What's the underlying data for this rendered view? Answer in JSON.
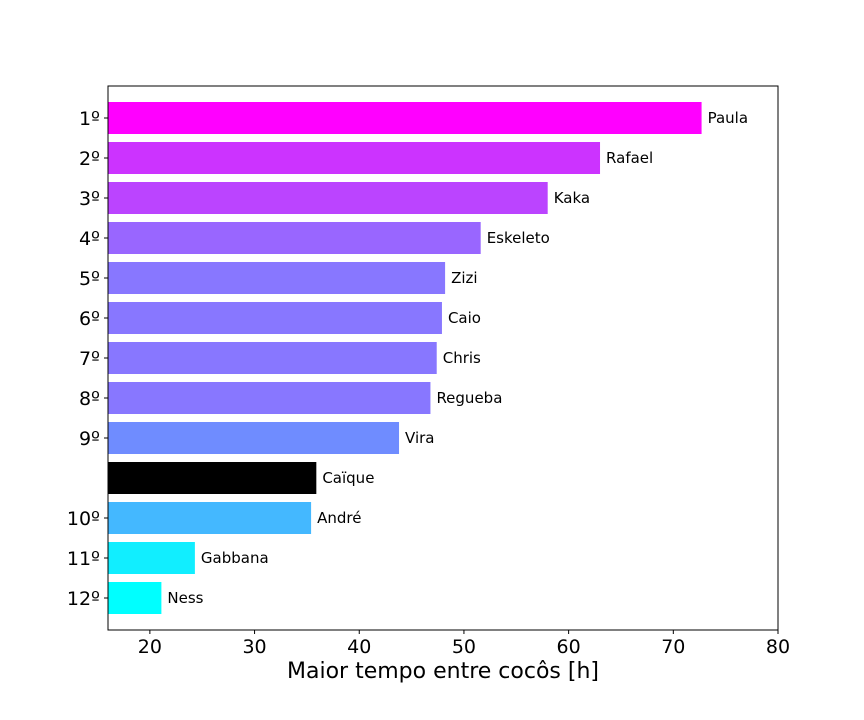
{
  "chart_data": {
    "type": "bar",
    "orientation": "horizontal",
    "title": "",
    "xlabel": "Maior tempo entre cocôs [h]",
    "ylabel": "",
    "xlim": [
      16,
      80
    ],
    "xticks": [
      20,
      30,
      40,
      50,
      60,
      70,
      80
    ],
    "grid": false,
    "bars": [
      {
        "rank": "1º",
        "name": "Paula",
        "value": 72.7,
        "color": "#ff00ff"
      },
      {
        "rank": "2º",
        "name": "Rafael",
        "value": 63.0,
        "color": "#cc33ff"
      },
      {
        "rank": "3º",
        "name": "Kaka",
        "value": 58.0,
        "color": "#bb44ff"
      },
      {
        "rank": "4º",
        "name": "Eskeleto",
        "value": 51.6,
        "color": "#9966ff"
      },
      {
        "rank": "5º",
        "name": "Zizi",
        "value": 48.2,
        "color": "#8877ff"
      },
      {
        "rank": "6º",
        "name": "Caio",
        "value": 47.9,
        "color": "#8877ff"
      },
      {
        "rank": "7º",
        "name": "Chris",
        "value": 47.4,
        "color": "#8877ff"
      },
      {
        "rank": "8º",
        "name": "Regueba",
        "value": 46.8,
        "color": "#8877ff"
      },
      {
        "rank": "9º",
        "name": "Vira",
        "value": 43.8,
        "color": "#6f8cff"
      },
      {
        "rank": "",
        "name": "Caïque",
        "value": 35.9,
        "color": "#000000"
      },
      {
        "rank": "10º",
        "name": "André",
        "value": 35.4,
        "color": "#44b8ff"
      },
      {
        "rank": "11º",
        "name": "Gabbana",
        "value": 24.3,
        "color": "#11eeff"
      },
      {
        "rank": "12º",
        "name": "Ness",
        "value": 21.1,
        "color": "#00ffff"
      }
    ]
  }
}
